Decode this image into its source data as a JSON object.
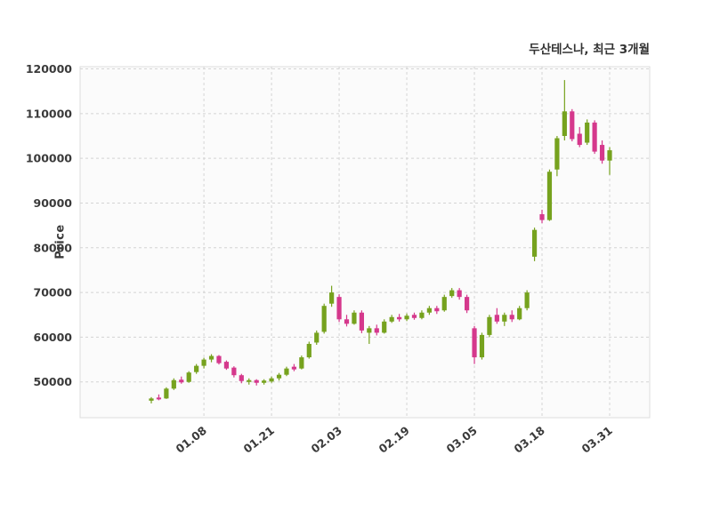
{
  "chart_data": {
    "type": "candlestick",
    "title": "두산테스나, 최근 3개월",
    "ylabel": "Price",
    "ylim": [
      42000,
      120500
    ],
    "y_ticks": [
      50000,
      60000,
      70000,
      80000,
      90000,
      100000,
      110000,
      120000
    ],
    "x_tick_labels": [
      "01.08",
      "01.21",
      "02.03",
      "02.19",
      "03.05",
      "03.18",
      "03.31"
    ],
    "x_tick_indices": [
      7,
      16,
      25,
      34,
      43,
      52,
      61
    ],
    "grid": "dashed-both-axes",
    "legend": "none",
    "colors": {
      "up": "#76a21e",
      "down": "#d5388c",
      "plot_bg": "#fbfbfb",
      "plot_border": "#dcdcdc",
      "grid": "#d4d4d4",
      "text": "#3a3a3a",
      "figure_bg": "#ffffff"
    },
    "candle_format": [
      "open",
      "high",
      "low",
      "close"
    ],
    "candles": [
      [
        45800,
        46600,
        45200,
        46300
      ],
      [
        46500,
        47200,
        45900,
        46100
      ],
      [
        46300,
        48800,
        46200,
        48500
      ],
      [
        48500,
        50800,
        48200,
        50400
      ],
      [
        50500,
        51200,
        49600,
        49900
      ],
      [
        50000,
        52400,
        49800,
        52100
      ],
      [
        52200,
        54000,
        51800,
        53600
      ],
      [
        53600,
        55400,
        53000,
        55000
      ],
      [
        55000,
        56200,
        54400,
        55800
      ],
      [
        55800,
        56000,
        53900,
        54200
      ],
      [
        54500,
        54800,
        52700,
        53000
      ],
      [
        53200,
        53500,
        51000,
        51500
      ],
      [
        51500,
        51800,
        49700,
        50200
      ],
      [
        50000,
        50800,
        49400,
        50400
      ],
      [
        50400,
        50600,
        49200,
        49800
      ],
      [
        49800,
        50600,
        49400,
        50300
      ],
      [
        50100,
        51200,
        49800,
        50800
      ],
      [
        50800,
        52000,
        50300,
        51600
      ],
      [
        51600,
        53400,
        51300,
        53000
      ],
      [
        53400,
        54000,
        52400,
        52800
      ],
      [
        53000,
        55900,
        52800,
        55500
      ],
      [
        55500,
        59000,
        55200,
        58500
      ],
      [
        58800,
        61500,
        58300,
        61000
      ],
      [
        61200,
        67500,
        60800,
        67000
      ],
      [
        67500,
        71500,
        66800,
        70000
      ],
      [
        69000,
        69600,
        63400,
        64000
      ],
      [
        64000,
        65000,
        62400,
        63000
      ],
      [
        63000,
        66000,
        62800,
        65500
      ],
      [
        65500,
        66000,
        60900,
        61500
      ],
      [
        61000,
        62500,
        58500,
        62000
      ],
      [
        62000,
        62800,
        60400,
        61000
      ],
      [
        61000,
        64000,
        60800,
        63500
      ],
      [
        63500,
        65000,
        63200,
        64500
      ],
      [
        64500,
        65200,
        63500,
        64000
      ],
      [
        64000,
        65300,
        63600,
        64800
      ],
      [
        65000,
        65500,
        63900,
        64300
      ],
      [
        64300,
        66000,
        64000,
        65500
      ],
      [
        65500,
        67000,
        65000,
        66500
      ],
      [
        66500,
        67000,
        65200,
        65800
      ],
      [
        66000,
        69500,
        65700,
        69000
      ],
      [
        69200,
        71000,
        68800,
        70500
      ],
      [
        70500,
        71000,
        68400,
        69000
      ],
      [
        69000,
        69500,
        65400,
        66000
      ],
      [
        62000,
        62500,
        54000,
        55500
      ],
      [
        55500,
        61000,
        55000,
        60500
      ],
      [
        60500,
        65000,
        60000,
        64500
      ],
      [
        65000,
        66500,
        63000,
        63500
      ],
      [
        63500,
        65500,
        62500,
        65000
      ],
      [
        65000,
        66000,
        63400,
        64000
      ],
      [
        64000,
        67000,
        63800,
        66500
      ],
      [
        66500,
        70500,
        66000,
        70000
      ],
      [
        78000,
        84500,
        77000,
        84000
      ],
      [
        87500,
        88500,
        85500,
        86200
      ],
      [
        86200,
        97500,
        86000,
        97000
      ],
      [
        97500,
        105000,
        96000,
        104500
      ],
      [
        105000,
        117500,
        104000,
        110500
      ],
      [
        110500,
        111000,
        103800,
        104300
      ],
      [
        105500,
        107000,
        102500,
        103000
      ],
      [
        103500,
        108700,
        103000,
        108000
      ],
      [
        108000,
        108500,
        101000,
        101500
      ],
      [
        103000,
        104000,
        98800,
        99500
      ],
      [
        99500,
        102500,
        96300,
        101800
      ]
    ]
  }
}
